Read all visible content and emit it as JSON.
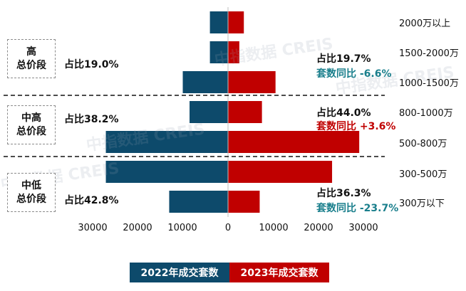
{
  "chart_data": {
    "type": "bar",
    "orientation": "horizontal-butterfly",
    "categories": [
      "2000万以上",
      "1500-2000万",
      "1000-1500万",
      "800-1000万",
      "500-800万",
      "300-500万",
      "300万以下"
    ],
    "series": [
      {
        "name": "2022年成交套数",
        "color": "#0d4a6b",
        "side": "left",
        "values": [
          4000,
          4000,
          10000,
          8500,
          27000,
          27000,
          13000
        ]
      },
      {
        "name": "2023年成交套数",
        "color": "#c00000",
        "side": "right",
        "values": [
          3500,
          2500,
          10500,
          7500,
          29000,
          23000,
          7000
        ]
      }
    ],
    "x_ticks": [
      "30000",
      "20000",
      "10000",
      "0",
      "10000",
      "20000",
      "30000"
    ],
    "xlim": [
      -32000,
      32000
    ],
    "groups": [
      {
        "name_line1": "高",
        "name_line2": "总价段",
        "share_2022": "占比19.0%",
        "share_2023": "占比19.7%",
        "yoy": "套数同比 -6.6%",
        "yoy_color": "#1a7f8c"
      },
      {
        "name_line1": "中高",
        "name_line2": "总价段",
        "share_2022": "占比38.2%",
        "share_2023": "占比44.0%",
        "yoy": "套数同比 +3.6%",
        "yoy_color": "#c00000"
      },
      {
        "name_line1": "中低",
        "name_line2": "总价段",
        "share_2022": "占比42.8%",
        "share_2023": "占比36.3%",
        "yoy": "套数同比 -23.7%",
        "yoy_color": "#1a7f8c"
      }
    ],
    "legend": [
      "2022年成交套数",
      "2023年成交套数"
    ],
    "grid": false
  },
  "watermark": "中指数据 CREIS"
}
